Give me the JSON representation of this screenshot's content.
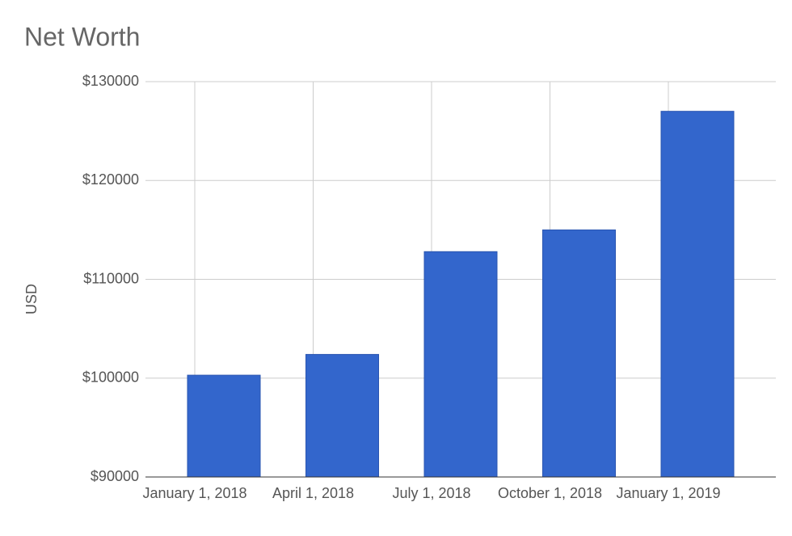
{
  "chart_data": {
    "type": "bar",
    "title": "Net Worth",
    "ylabel": "USD",
    "categories": [
      "January 1, 2018",
      "April 1, 2018",
      "July 1, 2018",
      "October 1, 2018",
      "January 1, 2019"
    ],
    "values": [
      100300,
      102400,
      112800,
      115000,
      127000
    ],
    "color": "#3366cc",
    "ylim": [
      90000,
      130000
    ],
    "yticks": [
      {
        "value": 90000,
        "label": "$90000"
      },
      {
        "value": 100000,
        "label": "$100000"
      },
      {
        "value": 110000,
        "label": "$110000"
      },
      {
        "value": 120000,
        "label": "$120000"
      },
      {
        "value": 130000,
        "label": "$130000"
      }
    ],
    "grid": true
  }
}
